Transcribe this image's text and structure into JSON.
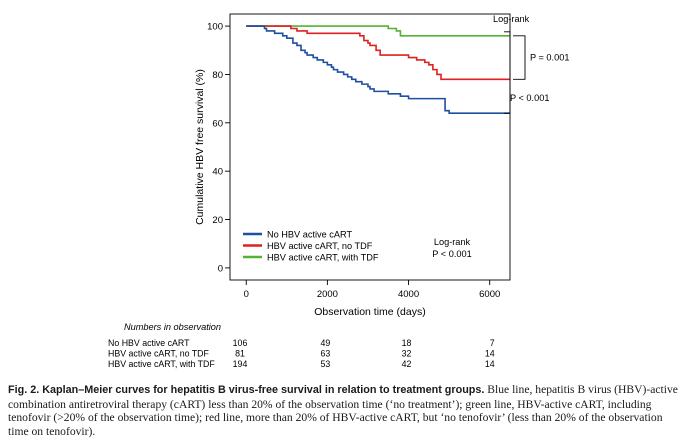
{
  "chart_data": {
    "type": "line",
    "xlabel": "Observation time (days)",
    "ylabel": "Cumulative HBV free survival (%)",
    "xlim": [
      -400,
      6500
    ],
    "ylim": [
      -5,
      105
    ],
    "xticks": [
      0,
      2000,
      4000,
      6000
    ],
    "yticks": [
      0,
      20,
      40,
      60,
      80,
      100
    ],
    "grid": false,
    "legend_position": "bottom-left",
    "series": [
      {
        "name": "No HBV active cART",
        "color": "#1f4fa0",
        "x": [
          0,
          300,
          450,
          500,
          700,
          900,
          1000,
          1150,
          1250,
          1350,
          1450,
          1500,
          1650,
          1750,
          1900,
          2000,
          2100,
          2150,
          2250,
          2400,
          2500,
          2600,
          2700,
          2850,
          3000,
          3050,
          3150,
          3400,
          3500,
          3800,
          4000,
          4500,
          4900,
          5000,
          6500
        ],
        "y": [
          100,
          100,
          99,
          98,
          97,
          96,
          95,
          93,
          92,
          90,
          89,
          88,
          87,
          86,
          85,
          84,
          83,
          82,
          81,
          80,
          79,
          78,
          77,
          76,
          75,
          74,
          73,
          73,
          72,
          71,
          70,
          70,
          65,
          64,
          64
        ]
      },
      {
        "name": "HBV active cART, no TDF",
        "color": "#e02020",
        "x": [
          0,
          700,
          1100,
          1250,
          1500,
          2000,
          2400,
          2800,
          2900,
          3000,
          3050,
          3200,
          3300,
          3600,
          3900,
          4000,
          4200,
          4400,
          4500,
          4600,
          4700,
          4800,
          6500
        ],
        "y": [
          100,
          100,
          99,
          98,
          97,
          97,
          97,
          96,
          94,
          93,
          92,
          90,
          88,
          88,
          88,
          87,
          86,
          85,
          84,
          82,
          80,
          78,
          78
        ]
      },
      {
        "name": "HBV active cART, with TDF",
        "color": "#52b332",
        "x": [
          0,
          2000,
          3200,
          3500,
          3700,
          3800,
          6500
        ],
        "y": [
          100,
          100,
          100,
          99,
          98,
          96,
          96
        ]
      }
    ],
    "annotations": {
      "logrank_header": "Log-rank",
      "p_top": "P = 0.001",
      "p_bottom": "P < 0.001",
      "legend_logrank": "Log-rank",
      "legend_p": "P < 0.001"
    },
    "numbers_table": {
      "title": "Numbers in observation",
      "rows": [
        {
          "label": "No HBV active cART",
          "values": [
            "106",
            "49",
            "18",
            "7"
          ]
        },
        {
          "label": "HBV active cART, no TDF",
          "values": [
            "81",
            "63",
            "32",
            "14"
          ]
        },
        {
          "label": "HBV active cART, with TDF",
          "values": [
            "194",
            "53",
            "42",
            "14"
          ]
        }
      ]
    }
  },
  "caption": {
    "bold": "Fig. 2.  Kaplan–Meier curves for hepatitis B virus-free survival in relation to treatment groups.",
    "text": " Blue line, hepatitis B virus (HBV)-active combination antiretroviral therapy (cART) less than 20% of the observation time (‘no treatment’); green line, HBV-active cART, including tenofovir (>20% of the observation time); red line, more than 20% of HBV-active cART, but ‘no tenofovir’ (less than 20% of the observation time on tenofovir)."
  }
}
